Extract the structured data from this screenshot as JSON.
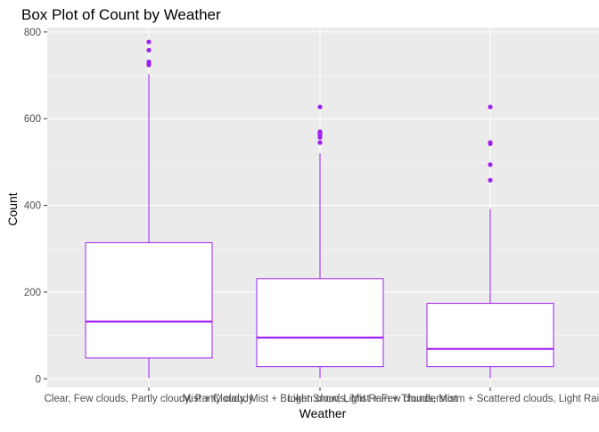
{
  "chart_data": {
    "type": "box",
    "title": "Box Plot of Count by Weather",
    "xlabel": "Weather",
    "ylabel": "Count",
    "ylim": [
      -20,
      810
    ],
    "y_ticks": [
      0,
      200,
      400,
      600,
      800
    ],
    "grid": true,
    "legend": "none",
    "colors": {
      "panel": "#ebebeb",
      "grid_major": "#ffffff",
      "box_stroke": "#a020f0",
      "box_fill": "#ffffff",
      "outlier": "#a020f0",
      "tick_text": "#4d4d4d"
    },
    "categories": [
      "Clear, Few clouds, Partly cloudy, Partly cloudy",
      "Mist + Cloudy, Mist + Broken clouds, Mist + Few clouds, Mist",
      "Light Snow, Light Rain + Thunderstorm + Scattered clouds, Light Rain + Scattered clouds"
    ],
    "boxes": [
      {
        "min": 1,
        "q1": 48,
        "median": 132,
        "q3": 314,
        "max": 703,
        "outliers": [
          724,
          728,
          731,
          758,
          777
        ]
      },
      {
        "min": 1,
        "q1": 28,
        "median": 95,
        "q3": 231,
        "max": 520,
        "outliers": [
          545,
          557,
          562,
          566,
          570,
          627
        ]
      },
      {
        "min": 1,
        "q1": 28,
        "median": 69,
        "q3": 174,
        "max": 392,
        "outliers": [
          458,
          494,
          542,
          545,
          627
        ]
      }
    ]
  }
}
